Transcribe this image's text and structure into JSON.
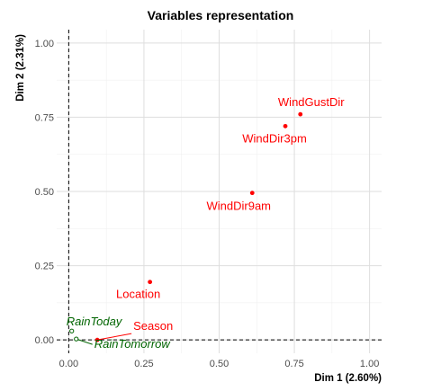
{
  "chart_data": {
    "type": "scatter",
    "title": "Variables representation",
    "xlabel": "Dim 1 (2.60%)",
    "ylabel": "Dim 2 (2.31%)",
    "xlim": [
      -0.04,
      1.04
    ],
    "ylim": [
      -0.045,
      1.045
    ],
    "xticks": [
      0.0,
      0.25,
      0.5,
      0.75,
      1.0
    ],
    "yticks": [
      0.0,
      0.25,
      0.5,
      0.75,
      1.0
    ],
    "xtick_labels": [
      "0.00",
      "0.25",
      "0.50",
      "0.75",
      "1.00"
    ],
    "ytick_labels": [
      "0.00",
      "0.25",
      "0.50",
      "0.75",
      "1.00"
    ],
    "grid": true,
    "reference_lines": {
      "x": 0,
      "y": 0
    },
    "colors": {
      "active": "#ff0000",
      "supplementary": "#006400"
    },
    "points": [
      {
        "label": "WindGustDir",
        "x": 0.77,
        "y": 0.76,
        "group": "active"
      },
      {
        "label": "WindDir3pm",
        "x": 0.72,
        "y": 0.72,
        "group": "active"
      },
      {
        "label": "WindDir9am",
        "x": 0.61,
        "y": 0.495,
        "group": "active"
      },
      {
        "label": "Location",
        "x": 0.27,
        "y": 0.195,
        "group": "active"
      },
      {
        "label": "Season",
        "x": 0.095,
        "y": 0.0,
        "group": "active"
      },
      {
        "label": "RainToday",
        "x": 0.01,
        "y": 0.03,
        "group": "supplementary"
      },
      {
        "label": "RainTomorrow",
        "x": 0.025,
        "y": 0.003,
        "group": "supplementary"
      }
    ]
  }
}
